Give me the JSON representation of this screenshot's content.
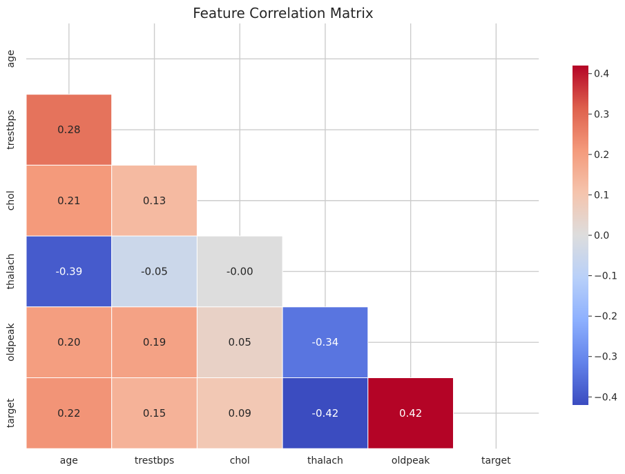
{
  "chart_data": {
    "type": "heatmap",
    "title": "Feature Correlation Matrix",
    "x_labels": [
      "age",
      "trestbps",
      "chol",
      "thalach",
      "oldpeak",
      "target"
    ],
    "y_labels": [
      "age",
      "trestbps",
      "chol",
      "thalach",
      "oldpeak",
      "target"
    ],
    "mask": "upper-triangle-including-diagonal",
    "cells": [
      {
        "row": 1,
        "col": 0,
        "value": 0.28,
        "label": "0.28"
      },
      {
        "row": 2,
        "col": 0,
        "value": 0.21,
        "label": "0.21"
      },
      {
        "row": 2,
        "col": 1,
        "value": 0.13,
        "label": "0.13"
      },
      {
        "row": 3,
        "col": 0,
        "value": -0.39,
        "label": "-0.39"
      },
      {
        "row": 3,
        "col": 1,
        "value": -0.05,
        "label": "-0.05"
      },
      {
        "row": 3,
        "col": 2,
        "value": -0.0,
        "label": "-0.00"
      },
      {
        "row": 4,
        "col": 0,
        "value": 0.2,
        "label": "0.20"
      },
      {
        "row": 4,
        "col": 1,
        "value": 0.19,
        "label": "0.19"
      },
      {
        "row": 4,
        "col": 2,
        "value": 0.05,
        "label": "0.05"
      },
      {
        "row": 4,
        "col": 3,
        "value": -0.34,
        "label": "-0.34"
      },
      {
        "row": 5,
        "col": 0,
        "value": 0.22,
        "label": "0.22"
      },
      {
        "row": 5,
        "col": 1,
        "value": 0.15,
        "label": "0.15"
      },
      {
        "row": 5,
        "col": 2,
        "value": 0.09,
        "label": "0.09"
      },
      {
        "row": 5,
        "col": 3,
        "value": -0.42,
        "label": "-0.42"
      },
      {
        "row": 5,
        "col": 4,
        "value": 0.42,
        "label": "0.42"
      }
    ],
    "colormap": "coolwarm",
    "colorbar": {
      "vmin": -0.42,
      "vmax": 0.42,
      "ticks": [
        -0.4,
        -0.3,
        -0.2,
        -0.1,
        0.0,
        0.1,
        0.2,
        0.3,
        0.4
      ],
      "tick_labels": [
        "−0.4",
        "−0.3",
        "−0.2",
        "−0.1",
        "0.0",
        "0.1",
        "0.2",
        "0.3",
        "0.4"
      ]
    },
    "grid": true
  }
}
